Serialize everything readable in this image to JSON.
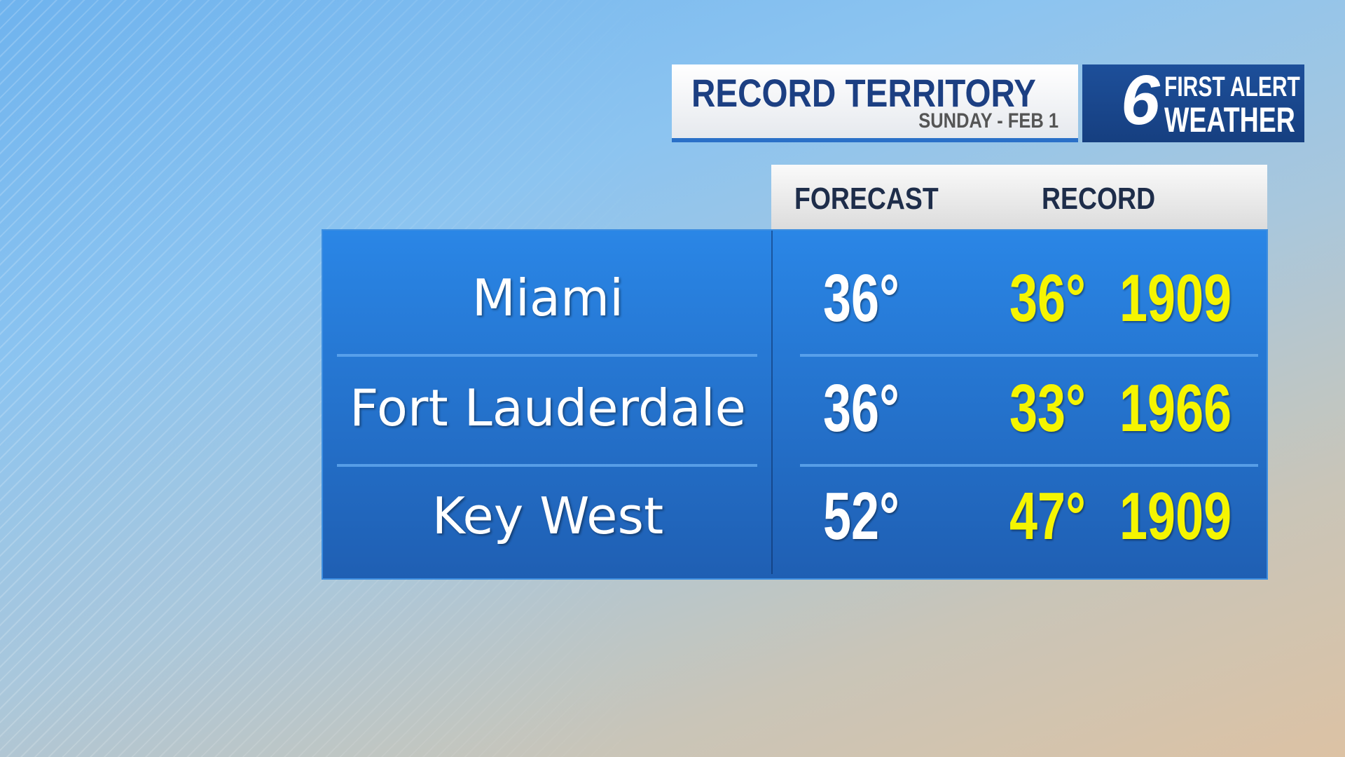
{
  "header": {
    "title": "RECORD TERRITORY",
    "subtitle": "SUNDAY - FEB 1"
  },
  "logo": {
    "number": "6",
    "line1": "FIRST ALERT",
    "line2": "WEATHER"
  },
  "table": {
    "columns": [
      "FORECAST",
      "RECORD"
    ],
    "rows": [
      [
        "Miami",
        "36°",
        "36°",
        "1909"
      ],
      [
        "Fort Lauderdale",
        "36°",
        "33°",
        "1966"
      ],
      [
        "Key West",
        "52°",
        "47°",
        "1909"
      ]
    ]
  }
}
